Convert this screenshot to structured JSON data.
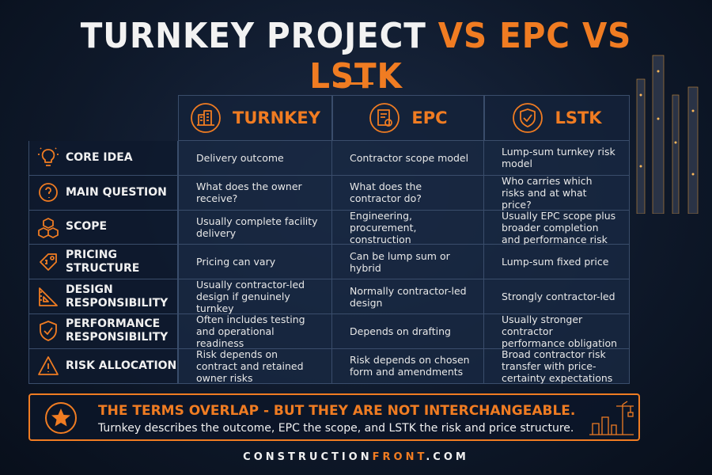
{
  "title": {
    "part1": "TURNKEY PROJECT",
    "part2": "VS EPC VS LSTK"
  },
  "columns": [
    "TURNKEY",
    "EPC",
    "LSTK"
  ],
  "rows": [
    {
      "label": "CORE IDEA",
      "cells": [
        "Delivery outcome",
        "Contractor scope model",
        "Lump-sum turnkey risk model"
      ]
    },
    {
      "label": "MAIN QUESTION",
      "cells": [
        "What does the owner receive?",
        "What does the contractor do?",
        "Who carries which risks and at what price?"
      ]
    },
    {
      "label": "SCOPE",
      "cells": [
        "Usually complete facility delivery",
        "Engineering, procurement, construction",
        "Usually EPC scope plus broader completion and performance risk"
      ]
    },
    {
      "label": "PRICING STRUCTURE",
      "cells": [
        "Pricing can vary",
        "Can be lump sum or hybrid",
        "Lump-sum fixed price"
      ]
    },
    {
      "label": "DESIGN RESPONSIBILITY",
      "cells": [
        "Usually contractor-led design if genuinely turnkey",
        "Normally contractor-led design",
        "Strongly contractor-led"
      ]
    },
    {
      "label": "PERFORMANCE RESPONSIBILITY",
      "cells": [
        "Often includes testing and operational readiness",
        "Depends on drafting",
        "Usually stronger contractor performance obligation"
      ]
    },
    {
      "label": "RISK ALLOCATION",
      "cells": [
        "Risk depends on contract and retained owner risks",
        "Risk depends on chosen form and amendments",
        "Broad contractor risk transfer with price-certainty expectations"
      ]
    }
  ],
  "banner": {
    "heading": "THE TERMS OVERLAP - BUT THEY ARE NOT INTERCHANGEABLE.",
    "text": "Turnkey describes the outcome, EPC the scope, and LSTK the risk and price structure."
  },
  "footer": {
    "part1": "CONSTRUCTION",
    "part2": "FRONT",
    "part3": ".COM"
  }
}
